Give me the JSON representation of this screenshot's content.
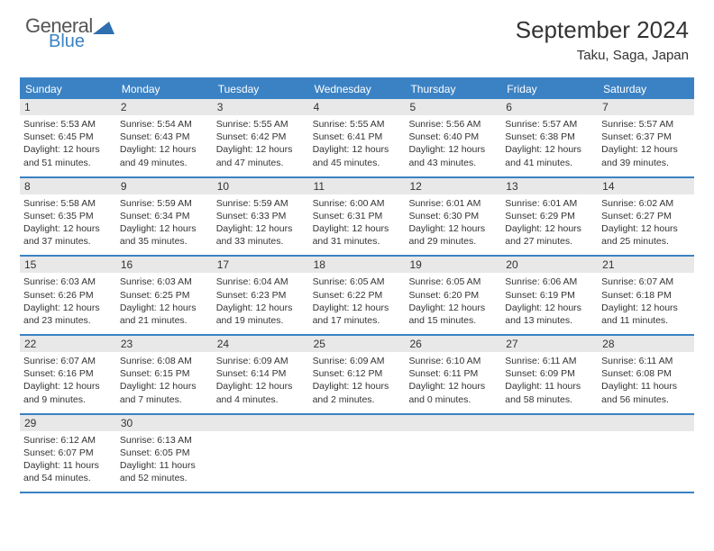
{
  "brand": {
    "word1": "General",
    "word2": "Blue",
    "shape_color": "#2e6fb0"
  },
  "title": "September 2024",
  "location": "Taku, Saga, Japan",
  "theme": {
    "accent": "#3b82c4",
    "header_bg": "#e8e8e8",
    "text_color": "#333333",
    "background": "#ffffff",
    "dow_fontsize": 12,
    "daynum_fontsize": 12,
    "body_fontsize": 10.5,
    "title_fontsize": 26,
    "location_fontsize": 15
  },
  "days_of_week": [
    "Sunday",
    "Monday",
    "Tuesday",
    "Wednesday",
    "Thursday",
    "Friday",
    "Saturday"
  ],
  "weeks": [
    [
      {
        "n": "1",
        "sr": "Sunrise: 5:53 AM",
        "ss": "Sunset: 6:45 PM",
        "d1": "Daylight: 12 hours",
        "d2": "and 51 minutes."
      },
      {
        "n": "2",
        "sr": "Sunrise: 5:54 AM",
        "ss": "Sunset: 6:43 PM",
        "d1": "Daylight: 12 hours",
        "d2": "and 49 minutes."
      },
      {
        "n": "3",
        "sr": "Sunrise: 5:55 AM",
        "ss": "Sunset: 6:42 PM",
        "d1": "Daylight: 12 hours",
        "d2": "and 47 minutes."
      },
      {
        "n": "4",
        "sr": "Sunrise: 5:55 AM",
        "ss": "Sunset: 6:41 PM",
        "d1": "Daylight: 12 hours",
        "d2": "and 45 minutes."
      },
      {
        "n": "5",
        "sr": "Sunrise: 5:56 AM",
        "ss": "Sunset: 6:40 PM",
        "d1": "Daylight: 12 hours",
        "d2": "and 43 minutes."
      },
      {
        "n": "6",
        "sr": "Sunrise: 5:57 AM",
        "ss": "Sunset: 6:38 PM",
        "d1": "Daylight: 12 hours",
        "d2": "and 41 minutes."
      },
      {
        "n": "7",
        "sr": "Sunrise: 5:57 AM",
        "ss": "Sunset: 6:37 PM",
        "d1": "Daylight: 12 hours",
        "d2": "and 39 minutes."
      }
    ],
    [
      {
        "n": "8",
        "sr": "Sunrise: 5:58 AM",
        "ss": "Sunset: 6:35 PM",
        "d1": "Daylight: 12 hours",
        "d2": "and 37 minutes."
      },
      {
        "n": "9",
        "sr": "Sunrise: 5:59 AM",
        "ss": "Sunset: 6:34 PM",
        "d1": "Daylight: 12 hours",
        "d2": "and 35 minutes."
      },
      {
        "n": "10",
        "sr": "Sunrise: 5:59 AM",
        "ss": "Sunset: 6:33 PM",
        "d1": "Daylight: 12 hours",
        "d2": "and 33 minutes."
      },
      {
        "n": "11",
        "sr": "Sunrise: 6:00 AM",
        "ss": "Sunset: 6:31 PM",
        "d1": "Daylight: 12 hours",
        "d2": "and 31 minutes."
      },
      {
        "n": "12",
        "sr": "Sunrise: 6:01 AM",
        "ss": "Sunset: 6:30 PM",
        "d1": "Daylight: 12 hours",
        "d2": "and 29 minutes."
      },
      {
        "n": "13",
        "sr": "Sunrise: 6:01 AM",
        "ss": "Sunset: 6:29 PM",
        "d1": "Daylight: 12 hours",
        "d2": "and 27 minutes."
      },
      {
        "n": "14",
        "sr": "Sunrise: 6:02 AM",
        "ss": "Sunset: 6:27 PM",
        "d1": "Daylight: 12 hours",
        "d2": "and 25 minutes."
      }
    ],
    [
      {
        "n": "15",
        "sr": "Sunrise: 6:03 AM",
        "ss": "Sunset: 6:26 PM",
        "d1": "Daylight: 12 hours",
        "d2": "and 23 minutes."
      },
      {
        "n": "16",
        "sr": "Sunrise: 6:03 AM",
        "ss": "Sunset: 6:25 PM",
        "d1": "Daylight: 12 hours",
        "d2": "and 21 minutes."
      },
      {
        "n": "17",
        "sr": "Sunrise: 6:04 AM",
        "ss": "Sunset: 6:23 PM",
        "d1": "Daylight: 12 hours",
        "d2": "and 19 minutes."
      },
      {
        "n": "18",
        "sr": "Sunrise: 6:05 AM",
        "ss": "Sunset: 6:22 PM",
        "d1": "Daylight: 12 hours",
        "d2": "and 17 minutes."
      },
      {
        "n": "19",
        "sr": "Sunrise: 6:05 AM",
        "ss": "Sunset: 6:20 PM",
        "d1": "Daylight: 12 hours",
        "d2": "and 15 minutes."
      },
      {
        "n": "20",
        "sr": "Sunrise: 6:06 AM",
        "ss": "Sunset: 6:19 PM",
        "d1": "Daylight: 12 hours",
        "d2": "and 13 minutes."
      },
      {
        "n": "21",
        "sr": "Sunrise: 6:07 AM",
        "ss": "Sunset: 6:18 PM",
        "d1": "Daylight: 12 hours",
        "d2": "and 11 minutes."
      }
    ],
    [
      {
        "n": "22",
        "sr": "Sunrise: 6:07 AM",
        "ss": "Sunset: 6:16 PM",
        "d1": "Daylight: 12 hours",
        "d2": "and 9 minutes."
      },
      {
        "n": "23",
        "sr": "Sunrise: 6:08 AM",
        "ss": "Sunset: 6:15 PM",
        "d1": "Daylight: 12 hours",
        "d2": "and 7 minutes."
      },
      {
        "n": "24",
        "sr": "Sunrise: 6:09 AM",
        "ss": "Sunset: 6:14 PM",
        "d1": "Daylight: 12 hours",
        "d2": "and 4 minutes."
      },
      {
        "n": "25",
        "sr": "Sunrise: 6:09 AM",
        "ss": "Sunset: 6:12 PM",
        "d1": "Daylight: 12 hours",
        "d2": "and 2 minutes."
      },
      {
        "n": "26",
        "sr": "Sunrise: 6:10 AM",
        "ss": "Sunset: 6:11 PM",
        "d1": "Daylight: 12 hours",
        "d2": "and 0 minutes."
      },
      {
        "n": "27",
        "sr": "Sunrise: 6:11 AM",
        "ss": "Sunset: 6:09 PM",
        "d1": "Daylight: 11 hours",
        "d2": "and 58 minutes."
      },
      {
        "n": "28",
        "sr": "Sunrise: 6:11 AM",
        "ss": "Sunset: 6:08 PM",
        "d1": "Daylight: 11 hours",
        "d2": "and 56 minutes."
      }
    ],
    [
      {
        "n": "29",
        "sr": "Sunrise: 6:12 AM",
        "ss": "Sunset: 6:07 PM",
        "d1": "Daylight: 11 hours",
        "d2": "and 54 minutes."
      },
      {
        "n": "30",
        "sr": "Sunrise: 6:13 AM",
        "ss": "Sunset: 6:05 PM",
        "d1": "Daylight: 11 hours",
        "d2": "and 52 minutes."
      },
      {
        "blank": true
      },
      {
        "blank": true
      },
      {
        "blank": true
      },
      {
        "blank": true
      },
      {
        "blank": true
      }
    ]
  ]
}
